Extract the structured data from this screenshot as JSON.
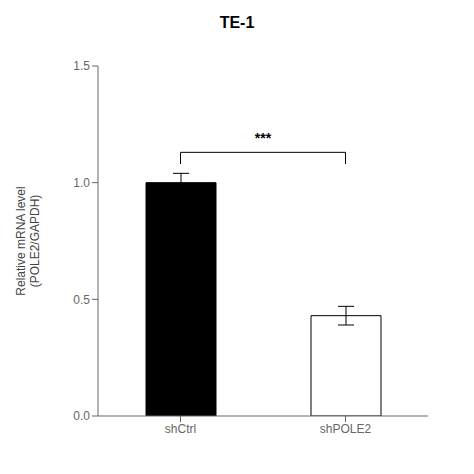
{
  "chart_data": {
    "type": "bar",
    "title": "TE-1",
    "ylabel": "Relative mRNA level\n(POLE2/GAPDH)",
    "categories": [
      "shCtrl",
      "shPOLE2"
    ],
    "values": [
      1.0,
      0.43
    ],
    "errors": [
      0.04,
      0.04
    ],
    "colors": [
      "black",
      "white"
    ],
    "ylim": [
      0,
      1.5
    ],
    "yticks": [
      {
        "value": 0,
        "label": "0.0"
      },
      0.5,
      {
        "value": 1,
        "label": "1.0"
      },
      1.5
    ],
    "grid": false,
    "legend": false,
    "annotations": [
      {
        "text": "***",
        "from": "shCtrl",
        "to": "shPOLE2",
        "y": 1.13,
        "text_y": 1.15
      }
    ]
  }
}
